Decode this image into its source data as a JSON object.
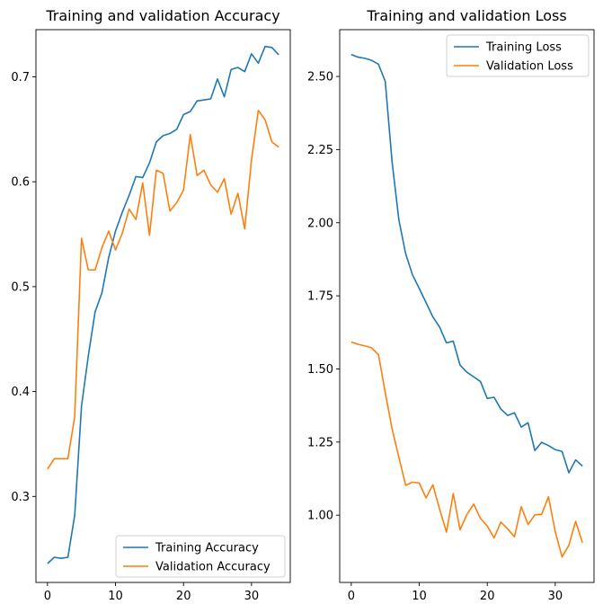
{
  "chart_data": [
    {
      "type": "line",
      "title": "Training and validation Accuracy",
      "xlabel": "",
      "ylabel": "",
      "xlim": [
        -1.7,
        35.7
      ],
      "ylim": [
        0.218,
        0.745
      ],
      "xticks": [
        0,
        10,
        20,
        30
      ],
      "yticks": [
        0.3,
        0.4,
        0.5,
        0.6,
        0.7
      ],
      "ytick_labels": [
        "0.3",
        "0.4",
        "0.5",
        "0.6",
        "0.7"
      ],
      "grid": false,
      "legend_position": "lower right",
      "x": [
        0,
        1,
        2,
        3,
        4,
        5,
        6,
        7,
        8,
        9,
        10,
        11,
        12,
        13,
        14,
        15,
        16,
        17,
        18,
        19,
        20,
        21,
        22,
        23,
        24,
        25,
        26,
        27,
        28,
        29,
        30,
        31,
        32,
        33,
        34
      ],
      "series": [
        {
          "name": "Training Accuracy",
          "color": "#1f77b4",
          "values": [
            0.236,
            0.242,
            0.241,
            0.242,
            0.282,
            0.386,
            0.434,
            0.476,
            0.494,
            0.528,
            0.553,
            0.571,
            0.587,
            0.605,
            0.604,
            0.618,
            0.638,
            0.644,
            0.646,
            0.65,
            0.664,
            0.667,
            0.677,
            0.678,
            0.679,
            0.698,
            0.681,
            0.707,
            0.709,
            0.705,
            0.722,
            0.713,
            0.729,
            0.728,
            0.721
          ]
        },
        {
          "name": "Validation Accuracy",
          "color": "#ff7f0e",
          "values": [
            0.326,
            0.336,
            0.336,
            0.336,
            0.376,
            0.546,
            0.516,
            0.516,
            0.537,
            0.553,
            0.535,
            0.551,
            0.574,
            0.564,
            0.599,
            0.549,
            0.611,
            0.608,
            0.572,
            0.58,
            0.592,
            0.645,
            0.606,
            0.611,
            0.597,
            0.59,
            0.603,
            0.569,
            0.589,
            0.555,
            0.621,
            0.668,
            0.659,
            0.638,
            0.633
          ]
        }
      ]
    },
    {
      "type": "line",
      "title": "Training and validation Loss",
      "xlabel": "",
      "ylabel": "",
      "xlim": [
        -1.7,
        35.7
      ],
      "ylim": [
        0.77,
        2.66
      ],
      "xticks": [
        0,
        10,
        20,
        30
      ],
      "yticks": [
        1.0,
        1.25,
        1.5,
        1.75,
        2.0,
        2.25,
        2.5
      ],
      "ytick_labels": [
        "1.00",
        "1.25",
        "1.50",
        "1.75",
        "2.00",
        "2.25",
        "2.50"
      ],
      "grid": false,
      "legend_position": "upper right",
      "x": [
        0,
        1,
        2,
        3,
        4,
        5,
        6,
        7,
        8,
        9,
        10,
        11,
        12,
        13,
        14,
        15,
        16,
        17,
        18,
        19,
        20,
        21,
        22,
        23,
        24,
        25,
        26,
        27,
        28,
        29,
        30,
        31,
        32,
        33,
        34
      ],
      "series": [
        {
          "name": "Training Loss",
          "color": "#1f77b4",
          "values": [
            2.575,
            2.566,
            2.562,
            2.555,
            2.542,
            2.483,
            2.209,
            2.01,
            1.894,
            1.822,
            1.775,
            1.727,
            1.678,
            1.643,
            1.589,
            1.595,
            1.513,
            1.489,
            1.473,
            1.457,
            1.399,
            1.403,
            1.363,
            1.341,
            1.35,
            1.301,
            1.316,
            1.221,
            1.249,
            1.238,
            1.224,
            1.218,
            1.145,
            1.189,
            1.168
          ]
        },
        {
          "name": "Validation Loss",
          "color": "#ff7f0e",
          "values": [
            1.592,
            1.584,
            1.579,
            1.572,
            1.549,
            1.419,
            1.296,
            1.198,
            1.102,
            1.113,
            1.11,
            1.059,
            1.104,
            1.02,
            0.942,
            1.074,
            0.95,
            1.002,
            1.038,
            0.989,
            0.963,
            0.922,
            0.976,
            0.953,
            0.926,
            1.029,
            0.968,
            1.001,
            1.003,
            1.063,
            0.944,
            0.857,
            0.897,
            0.979,
            0.906
          ]
        }
      ]
    }
  ]
}
